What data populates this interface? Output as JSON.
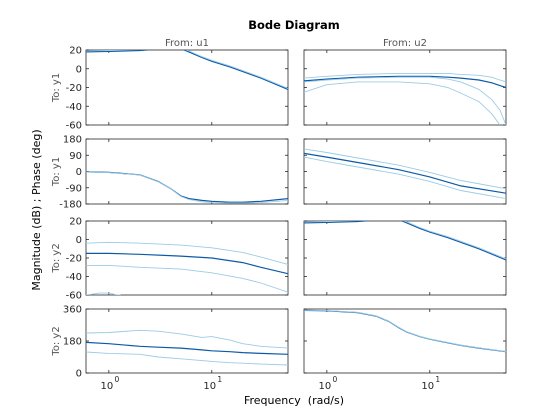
{
  "chart_data": {
    "type": "line",
    "title": "Bode Diagram",
    "xlabel": "Frequency  (rad/s)",
    "ylabel": "Magnitude (dB) ; Phase (deg)",
    "x_scale": "log",
    "xlim": [
      0.6,
      55
    ],
    "x_ticks": [
      1,
      10
    ],
    "x_tick_labels": [
      [
        "10",
        "0"
      ],
      [
        "10",
        "1"
      ]
    ],
    "grid": false,
    "legend": "none",
    "colors": {
      "main": "#0c5aa6",
      "band": "#9ccbe6"
    },
    "column_titles": [
      "From: u1",
      "From: u2"
    ],
    "row_titles": [
      "To: y1",
      "To: y1",
      "To: y2",
      "To: y2"
    ],
    "rows": [
      {
        "kind": "magnitude",
        "ylim": [
          -60,
          20
        ],
        "yticks": [
          20,
          0,
          -20,
          -40,
          -60
        ]
      },
      {
        "kind": "phase",
        "ylim": [
          -180,
          180
        ],
        "yticks": [
          180,
          90,
          0,
          -90,
          -180
        ]
      },
      {
        "kind": "magnitude",
        "ylim": [
          -60,
          20
        ],
        "yticks": [
          20,
          0,
          -20,
          -40,
          -60
        ]
      },
      {
        "kind": "phase",
        "ylim": [
          0,
          360
        ],
        "yticks": [
          360,
          180,
          0
        ]
      }
    ],
    "panels": [
      {
        "row": 0,
        "col": 0,
        "x": [
          0.6,
          1,
          2,
          3,
          4,
          5,
          6,
          8,
          10,
          15,
          20,
          30,
          55
        ],
        "series": [
          {
            "role": "nominal",
            "values": [
              18,
              18.5,
              19.5,
              21,
              22,
              21.5,
              18,
              12,
              8,
              2,
              -3,
              -10,
              -22
            ]
          },
          {
            "role": "bound",
            "values": [
              19,
              19.5,
              20.5,
              22,
              23,
              22.5,
              19,
              13,
              9,
              3,
              -2,
              -9,
              -21
            ]
          }
        ]
      },
      {
        "row": 0,
        "col": 1,
        "x": [
          0.6,
          1,
          2,
          5,
          10,
          15,
          20,
          30,
          40,
          48,
          55
        ],
        "series": [
          {
            "role": "nominal",
            "values": [
              -13,
              -11,
              -9,
              -8,
              -8,
              -9,
              -10,
              -12,
              -15,
              -18,
              -20
            ]
          },
          {
            "role": "upper",
            "values": [
              -10,
              -8,
              -6,
              -5,
              -5,
              -5,
              -6,
              -7,
              -9,
              -12,
              -14
            ]
          },
          {
            "role": "lower",
            "values": [
              -25,
              -17,
              -14,
              -14,
              -16,
              -20,
              -26,
              -35,
              -48,
              -60,
              null
            ]
          },
          {
            "role": "bound",
            "values": [
              -14,
              -12,
              -10,
              -9,
              -9,
              -11,
              -14,
              -22,
              -33,
              -44,
              -60
            ]
          }
        ]
      },
      {
        "row": 1,
        "col": 0,
        "x": [
          0.6,
          1,
          2,
          3,
          4,
          5,
          6,
          8,
          10,
          15,
          20,
          30,
          55
        ],
        "series": [
          {
            "role": "nominal",
            "values": [
              -2,
              -5,
              -18,
              -55,
              -95,
              -135,
              -150,
              -160,
              -165,
              -170,
              -170,
              -165,
              -150
            ]
          },
          {
            "role": "bound",
            "values": [
              -3,
              -6,
              -19,
              -56,
              -96,
              -138,
              -155,
              -168,
              -172,
              -175,
              -175,
              -172,
              -160
            ]
          }
        ]
      },
      {
        "row": 1,
        "col": 1,
        "x": [
          0.6,
          1,
          2,
          5,
          10,
          20,
          55
        ],
        "series": [
          {
            "role": "nominal",
            "values": [
              100,
              80,
              50,
              10,
              -30,
              -80,
              -120
            ]
          },
          {
            "role": "upper",
            "values": [
              125,
              105,
              75,
              35,
              -5,
              -50,
              -95
            ]
          },
          {
            "role": "lower",
            "values": [
              80,
              55,
              25,
              -15,
              -55,
              -105,
              -150
            ]
          }
        ]
      },
      {
        "row": 2,
        "col": 0,
        "x": [
          0.6,
          1,
          2,
          5,
          10,
          20,
          30,
          55
        ],
        "series": [
          {
            "role": "nominal",
            "values": [
              -15,
              -15,
              -16,
              -18,
              -20,
              -25,
              -30,
              -37
            ]
          },
          {
            "role": "upper",
            "values": [
              -4,
              -3,
              -4,
              -6,
              -9,
              -14,
              -19,
              -27
            ]
          },
          {
            "role": "lower",
            "values": [
              -28,
              -28,
              -30,
              -32,
              -36,
              -42,
              -47,
              -57
            ]
          }
        ]
      },
      {
        "row": 2,
        "col": 0,
        "x": [
          0.6,
          0.7,
          0.8,
          0.9,
          1,
          1.1,
          1.2,
          1.3
        ],
        "series": [
          {
            "role": "bound",
            "values": [
              -60,
              -59,
              -58,
              -58,
              -58,
              -59,
              -60,
              -60
            ]
          }
        ]
      },
      {
        "row": 2,
        "col": 1,
        "x": [
          0.6,
          1,
          2,
          3,
          4,
          5,
          6,
          8,
          10,
          15,
          20,
          30,
          55
        ],
        "series": [
          {
            "role": "nominal",
            "values": [
              18,
              18.5,
              19.5,
              21,
              22,
              21.5,
              18,
              12,
              8,
              2,
              -3,
              -10,
              -22
            ]
          },
          {
            "role": "bound",
            "values": [
              19,
              19.5,
              20.5,
              22,
              23,
              22.5,
              19,
              13,
              9,
              3,
              -2,
              -9,
              -21
            ]
          }
        ]
      },
      {
        "row": 3,
        "col": 0,
        "x": [
          0.6,
          1,
          2,
          3,
          5,
          8,
          10,
          15,
          20,
          30,
          55
        ],
        "series": [
          {
            "role": "nominal",
            "values": [
              172,
              165,
              150,
              145,
              140,
              130,
              125,
              120,
              115,
              110,
              105
            ]
          },
          {
            "role": "upper",
            "values": [
              225,
              228,
              240,
              235,
              220,
              200,
              205,
              185,
              165,
              150,
              140
            ]
          },
          {
            "role": "lower",
            "values": [
              118,
              110,
              105,
              90,
              80,
              70,
              65,
              58,
              55,
              50,
              45
            ]
          }
        ]
      },
      {
        "row": 3,
        "col": 1,
        "x": [
          0.6,
          1,
          2,
          3,
          4,
          5,
          6,
          8,
          10,
          15,
          20,
          30,
          55
        ],
        "series": [
          {
            "role": "nominal",
            "values": [
              352,
              350,
              340,
              320,
              290,
              255,
              230,
              205,
              190,
              170,
              155,
              140,
              120
            ]
          },
          {
            "role": "bound",
            "values": [
              353,
              351,
              341,
              321,
              291,
              256,
              231,
              206,
              191,
              171,
              156,
              141,
              121
            ]
          }
        ]
      }
    ]
  }
}
